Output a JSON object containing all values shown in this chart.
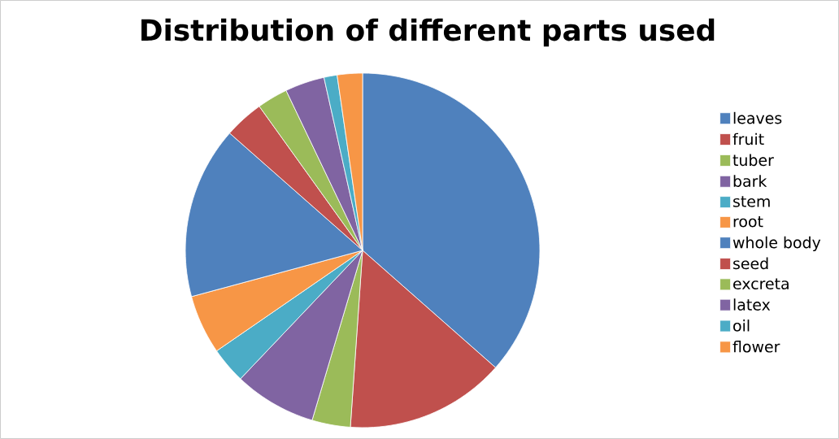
{
  "chart_data": {
    "type": "pie",
    "title": "Distribution of different parts used",
    "categories": [
      "leaves",
      "fruit",
      "tuber",
      "bark",
      "stem",
      "root",
      "whole body",
      "seed",
      "excreta",
      "latex",
      "oil",
      "flower"
    ],
    "values": [
      36.5,
      14.6,
      3.5,
      7.5,
      3.3,
      5.4,
      15.7,
      3.6,
      2.8,
      3.6,
      1.2,
      2.3
    ],
    "colors": [
      "#4f81bd",
      "#c0504d",
      "#9bbb59",
      "#8064a2",
      "#4bacc6",
      "#f79646",
      "#4f81bd",
      "#c0504d",
      "#9bbb59",
      "#8064a2",
      "#4bacc6",
      "#f79646"
    ],
    "legend": "right"
  }
}
